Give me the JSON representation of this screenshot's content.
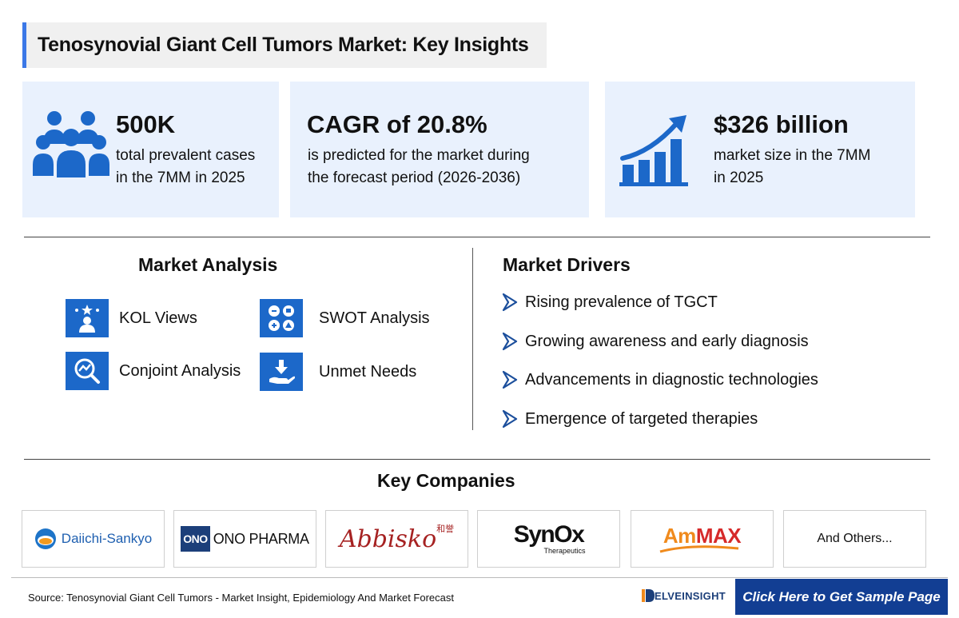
{
  "title": "Tenosynovial Giant Cell Tumors Market: Key Insights",
  "stats": [
    {
      "value": "500K",
      "desc_line1": "total prevalent cases",
      "desc_line2": "in the 7MM in 2025",
      "icon": "people-group-icon"
    },
    {
      "value": "CAGR of 20.8%",
      "desc_line1": "is predicted for the market during",
      "desc_line2": "the forecast period (2026-2036)"
    },
    {
      "value": "$326 billion",
      "desc_line1": "market size in the 7MM",
      "desc_line2": "in 2025",
      "icon": "growth-chart-icon"
    }
  ],
  "market_analysis": {
    "title": "Market Analysis",
    "items": [
      {
        "label": "KOL Views",
        "icon": "kol-person-icon"
      },
      {
        "label": "SWOT Analysis",
        "icon": "swot-icon"
      },
      {
        "label": "Conjoint Analysis",
        "icon": "magnifier-chart-icon"
      },
      {
        "label": "Unmet Needs",
        "icon": "hand-download-icon"
      }
    ]
  },
  "market_drivers": {
    "title": "Market Drivers",
    "items": [
      "Rising prevalence of TGCT",
      "Growing awareness and early diagnosis",
      "Advancements in diagnostic technologies",
      "Emergence of targeted therapies"
    ]
  },
  "key_companies": {
    "title": "Key Companies",
    "items": [
      {
        "name": "Daiichi-Sankyo"
      },
      {
        "name": "ONO PHARMA",
        "mark": "ONO"
      },
      {
        "name": "Abbisko",
        "mark": "和誉"
      },
      {
        "name": "SynOx",
        "sub": "Therapeutics"
      },
      {
        "name_part1": "Am",
        "name_part2": "MAX"
      },
      {
        "name": "And Others..."
      }
    ]
  },
  "footer": {
    "source": "Source: Tenosynovial Giant Cell Tumors - Market Insight, Epidemiology And Market Forecast",
    "brand": "ELVEINSIGHT",
    "cta": "Click Here to Get Sample Page"
  },
  "colors": {
    "accent": "#3b78e7",
    "icon_blue": "#1c68c9",
    "card_bg": "#e9f1fd",
    "cta_bg": "#123e93",
    "ammax_orange": "#f08a1c",
    "ammax_red": "#d62a2a"
  }
}
